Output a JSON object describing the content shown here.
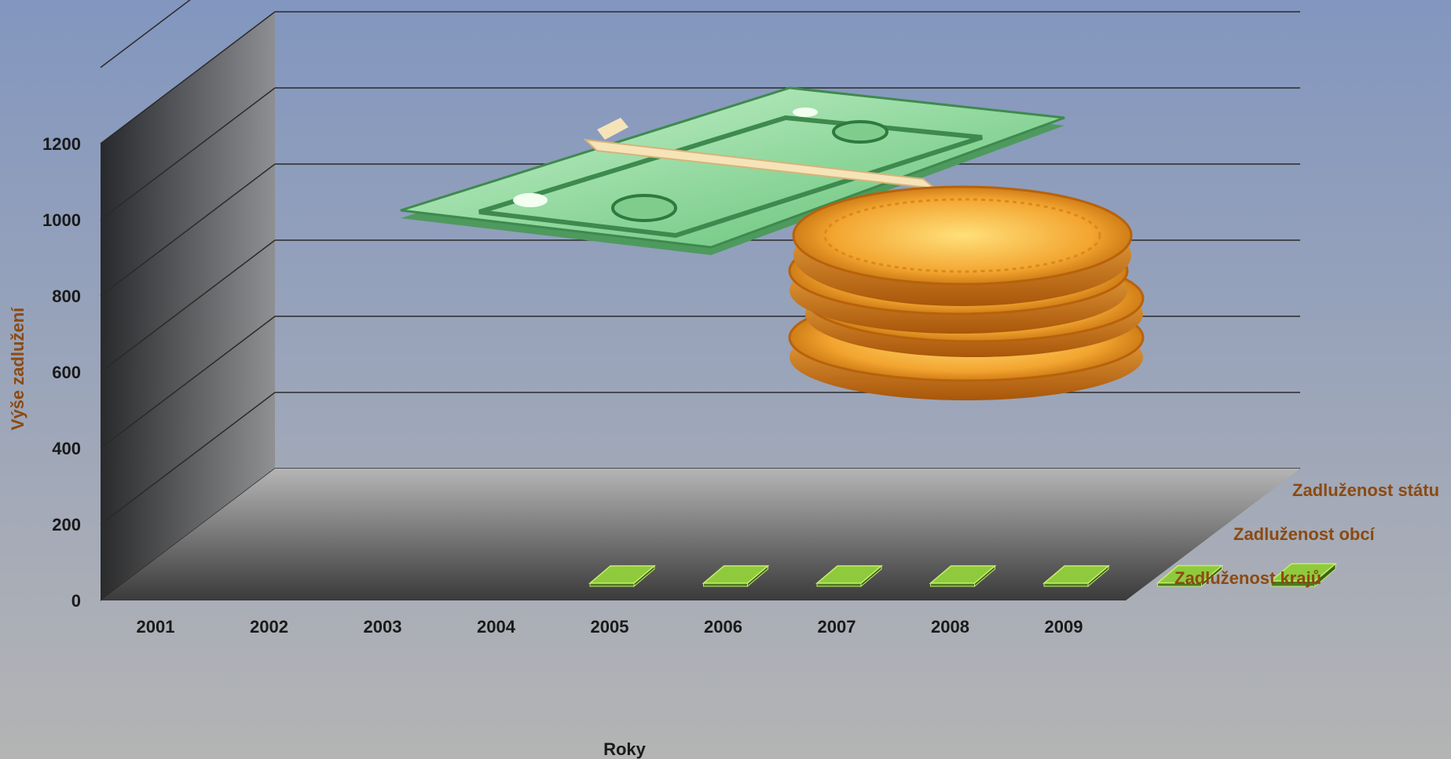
{
  "chart_data": {
    "type": "bar",
    "chart_style": "3d-column",
    "title": "",
    "xlabel": "Roky",
    "ylabel": "Výše zadlužení",
    "ylim": [
      0,
      1200
    ],
    "yticks": [
      0,
      200,
      400,
      600,
      800,
      1000,
      1200
    ],
    "grid": true,
    "categories": [
      "2001",
      "2002",
      "2003",
      "2004",
      "2005",
      "2006",
      "2007",
      "2008",
      "2009"
    ],
    "series": [
      {
        "name": "Zadluženost krajů",
        "values": [
          null,
          null,
          2,
          2,
          3,
          4,
          6,
          9,
          14
        ]
      },
      {
        "name": "Zadluženost obcí",
        "values": [
          null,
          null,
          null,
          null,
          null,
          null,
          null,
          null,
          null
        ]
      },
      {
        "name": "Zadluženost státu",
        "values": [
          null,
          null,
          null,
          null,
          null,
          null,
          null,
          null,
          null
        ]
      }
    ],
    "colors": {
      "background_top": "#8296bf",
      "background_bottom": "#b4b4b4",
      "bar_top": "#8fca3c",
      "bar_front": "#4a7a1e",
      "bar_edge": "#c7ec6f",
      "axis_title": "#8b4a12"
    }
  }
}
